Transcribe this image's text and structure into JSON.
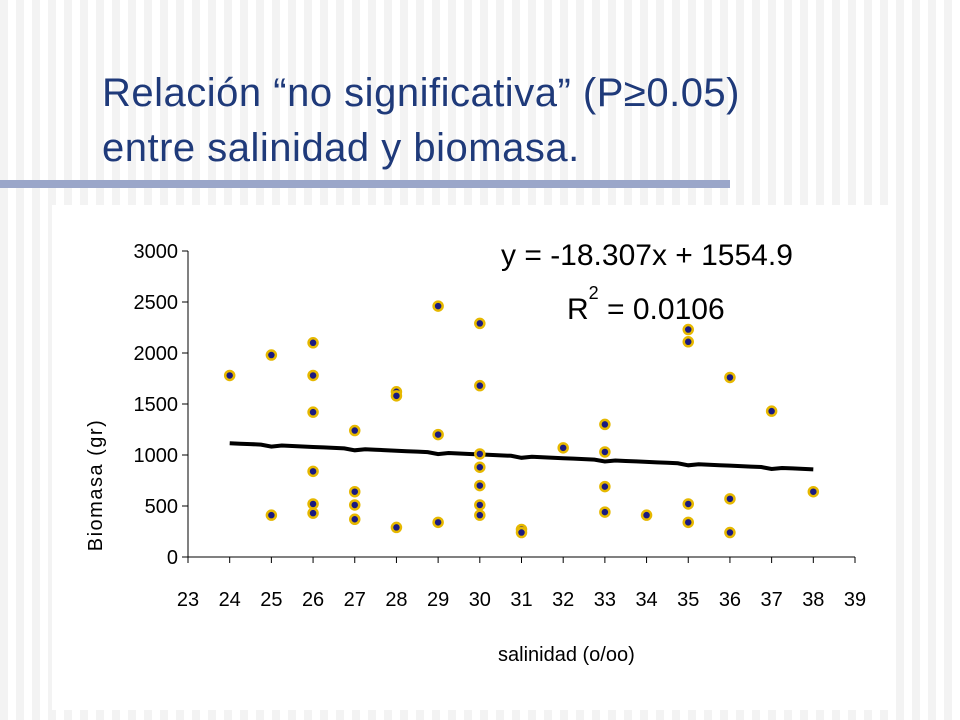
{
  "slide": {
    "title_line1": "Relación “no significativa” (P≥0.05)",
    "title_line2": "entre salinidad y biomasa.",
    "title_color": "#1f3a7a",
    "rule_color": "#9aa6c9"
  },
  "chart_data": {
    "type": "scatter",
    "xlabel": "salinidad (o/oo)",
    "ylabel": "Biomasa (gr)",
    "xlim": [
      23,
      39
    ],
    "ylim": [
      0,
      3000
    ],
    "x_ticks": [
      "23",
      "24",
      "25",
      "26",
      "27",
      "28",
      "29",
      "30",
      "31",
      "32",
      "33",
      "34",
      "35",
      "36",
      "37",
      "38",
      "39"
    ],
    "y_ticks": [
      "0",
      "500",
      "1000",
      "1500",
      "2000",
      "2500",
      "3000"
    ],
    "grid": false,
    "legend": "none",
    "marker_fill": "#1a1a80",
    "marker_edge": "#e6b800",
    "trendline": {
      "equation": "y = -18.307x + 1554.9",
      "r2_prefix": "R",
      "r2_exp": "2",
      "r2_value": " = 0.0106",
      "slope": -18.307,
      "intercept": 1554.9,
      "x_range": [
        24,
        38
      ],
      "color": "#000000"
    },
    "series": [
      {
        "points": [
          [
            24,
            1780
          ],
          [
            25,
            1980
          ],
          [
            25,
            410
          ],
          [
            26,
            2100
          ],
          [
            26,
            1780
          ],
          [
            26,
            1420
          ],
          [
            26,
            840
          ],
          [
            26,
            520
          ],
          [
            26,
            430
          ],
          [
            27,
            1240
          ],
          [
            27,
            640
          ],
          [
            27,
            510
          ],
          [
            27,
            370
          ],
          [
            28,
            1620
          ],
          [
            28,
            1580
          ],
          [
            28,
            290
          ],
          [
            29,
            2460
          ],
          [
            29,
            1200
          ],
          [
            29,
            340
          ],
          [
            30,
            2290
          ],
          [
            30,
            1680
          ],
          [
            30,
            1010
          ],
          [
            30,
            880
          ],
          [
            30,
            700
          ],
          [
            30,
            510
          ],
          [
            30,
            410
          ],
          [
            31,
            270
          ],
          [
            31,
            240
          ],
          [
            32,
            1070
          ],
          [
            33,
            1300
          ],
          [
            33,
            1030
          ],
          [
            33,
            690
          ],
          [
            33,
            440
          ],
          [
            34,
            410
          ],
          [
            35,
            2230
          ],
          [
            35,
            2110
          ],
          [
            35,
            520
          ],
          [
            35,
            340
          ],
          [
            36,
            1760
          ],
          [
            36,
            570
          ],
          [
            36,
            240
          ],
          [
            37,
            1430
          ],
          [
            38,
            640
          ]
        ]
      }
    ]
  }
}
